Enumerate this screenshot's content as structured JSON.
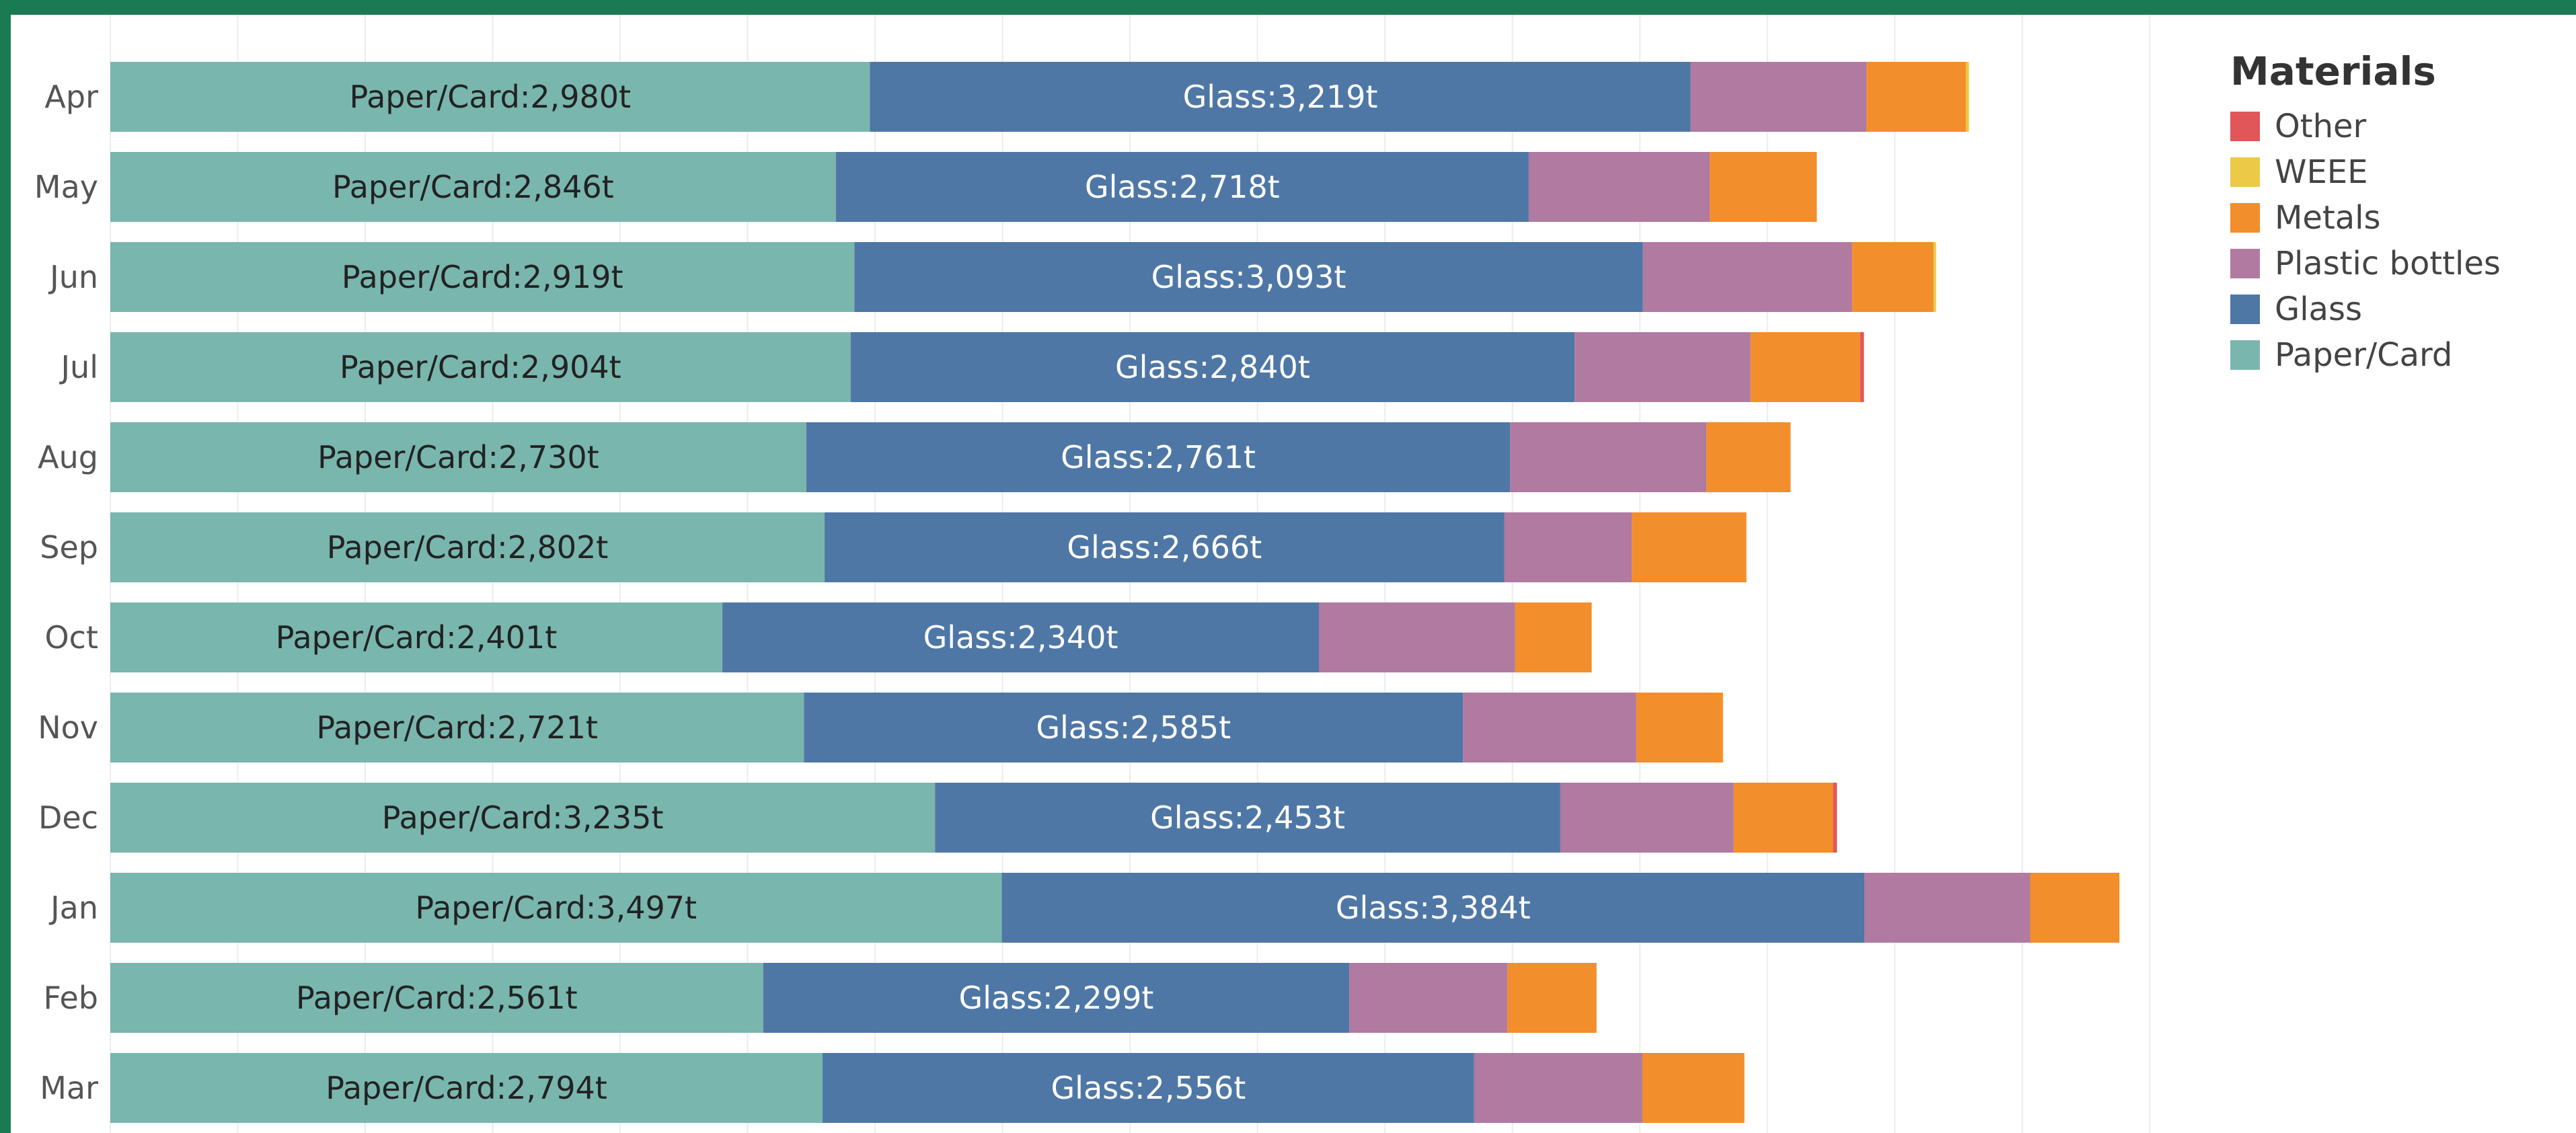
{
  "chart_data": {
    "type": "bar",
    "orientation": "horizontal",
    "stacked": true,
    "title": "",
    "xlabel": "",
    "ylabel": "",
    "xlim": [
      0,
      8250
    ],
    "grid": true,
    "legend_position": "top-right",
    "legend_title": "Materials",
    "legend_order": [
      "Other",
      "WEEE",
      "Metals",
      "Plastic bottles",
      "Glass",
      "Paper/Card"
    ],
    "categories": [
      "Apr",
      "May",
      "Jun",
      "Jul",
      "Aug",
      "Sep",
      "Oct",
      "Nov",
      "Dec",
      "Jan",
      "Feb",
      "Mar"
    ],
    "series": [
      {
        "name": "Paper/Card",
        "color": "#79b6ae",
        "label_color": "#222222",
        "values": [
          2980,
          2846,
          2919,
          2904,
          2730,
          2802,
          2401,
          2721,
          3235,
          3497,
          2561,
          2794
        ],
        "labels": [
          "Paper/Card:2,980t",
          "Paper/Card:2,846t",
          "Paper/Card:2,919t",
          "Paper/Card:2,904t",
          "Paper/Card:2,730t",
          "Paper/Card:2,802t",
          "Paper/Card:2,401t",
          "Paper/Card:2,721t",
          "Paper/Card:3,235t",
          "Paper/Card:3,497t",
          "Paper/Card:2,561t",
          "Paper/Card:2,794t"
        ]
      },
      {
        "name": "Glass",
        "color": "#4e77a6",
        "label_color": "#ffffff",
        "values": [
          3219,
          2718,
          3093,
          2840,
          2761,
          2666,
          2340,
          2585,
          2453,
          3384,
          2299,
          2556
        ],
        "labels": [
          "Glass:3,219t",
          "Glass:2,718t",
          "Glass:3,093t",
          "Glass:2,840t",
          "Glass:2,761t",
          "Glass:2,666t",
          "Glass:2,340t",
          "Glass:2,585t",
          "Glass:2,453t",
          "Glass:3,384t",
          "Glass:2,299t",
          "Glass:2,556t"
        ]
      },
      {
        "name": "Plastic bottles",
        "color": "#b07aa1",
        "values": [
          690,
          710,
          820,
          690,
          770,
          500,
          770,
          680,
          680,
          650,
          620,
          660
        ]
      },
      {
        "name": "Metals",
        "color": "#f28e2b",
        "values": [
          390,
          420,
          320,
          430,
          330,
          450,
          300,
          340,
          390,
          350,
          350,
          400
        ]
      },
      {
        "name": "WEEE",
        "color": "#edc948",
        "values": [
          12,
          0,
          10,
          0,
          0,
          0,
          0,
          0,
          0,
          0,
          0,
          0
        ]
      },
      {
        "name": "Other",
        "color": "#e15759",
        "values": [
          0,
          0,
          0,
          15,
          0,
          0,
          0,
          0,
          15,
          0,
          0,
          0
        ]
      }
    ]
  }
}
